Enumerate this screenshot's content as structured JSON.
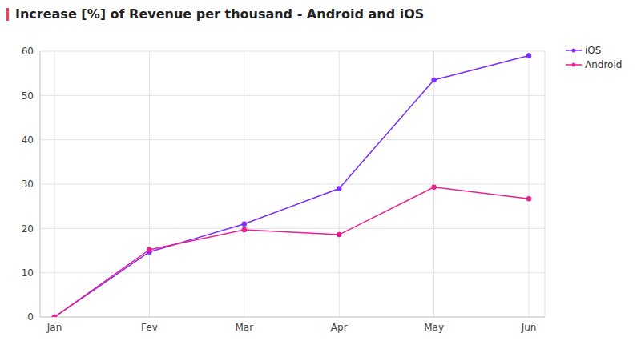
{
  "chart_data": {
    "type": "line",
    "title": "Increase [%] of Revenue per thousand - Android and iOS",
    "categories": [
      "Jan",
      "Fev",
      "Mar",
      "Apr",
      "May",
      "Jun"
    ],
    "series": [
      {
        "name": "iOS",
        "color": "#7b2ff7",
        "values": [
          0,
          14.7,
          21,
          29,
          53.5,
          59
        ]
      },
      {
        "name": "Android",
        "color": "#ea1f8e",
        "values": [
          0,
          15.2,
          19.7,
          18.6,
          29.3,
          26.7
        ]
      }
    ],
    "ylim": [
      0,
      60
    ],
    "yticks": [
      0,
      10,
      20,
      30,
      40,
      50,
      60
    ],
    "grid": true,
    "legend": "upper right",
    "marker": "circle"
  }
}
